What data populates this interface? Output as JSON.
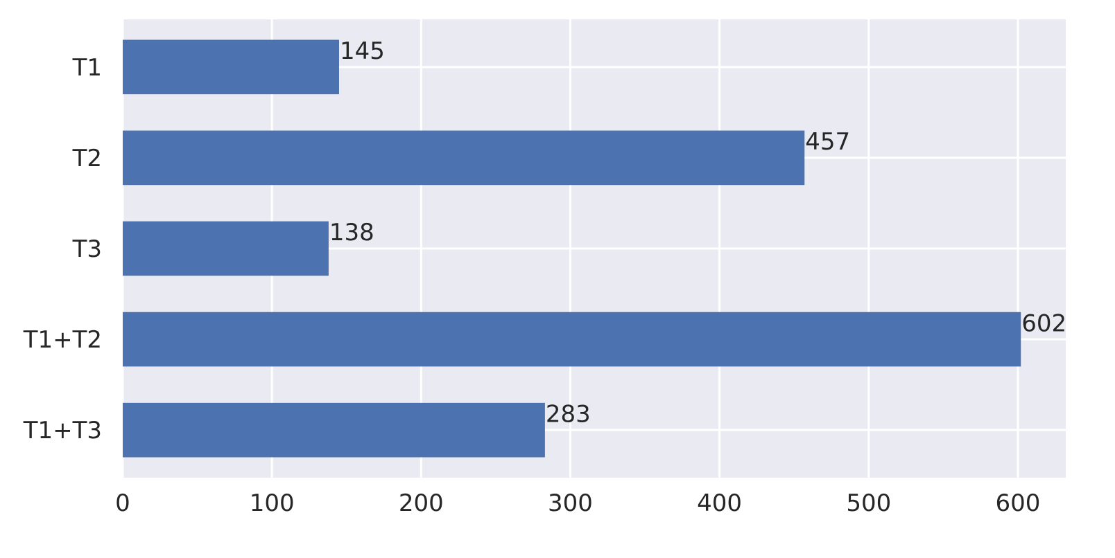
{
  "chart_data": {
    "type": "barh",
    "categories": [
      "T1",
      "T2",
      "T3",
      "T1+T2",
      "T1+T3"
    ],
    "values": [
      145,
      457,
      138,
      602,
      283
    ],
    "color": "#4c72b0",
    "xlim": [
      0,
      632.1
    ],
    "xticks": [
      0,
      100,
      200,
      300,
      400,
      500,
      600
    ],
    "grid": true
  }
}
